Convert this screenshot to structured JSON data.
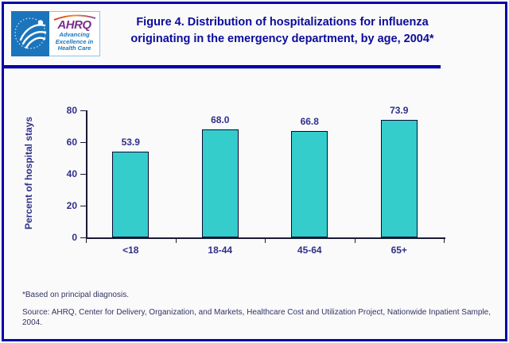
{
  "header": {
    "logo": {
      "acronym": "AHRQ",
      "tagline_lines": [
        "Advancing",
        "Excellence in",
        "Health Care"
      ]
    },
    "title_line1": "Figure 4. Distribution of hospitalizations for influenza",
    "title_line2": "originating in the emergency department, by age, 2004*"
  },
  "chart_data": {
    "type": "bar",
    "categories": [
      "<18",
      "18-44",
      "45-64",
      "65+"
    ],
    "values": [
      53.9,
      68.0,
      66.8,
      73.9
    ],
    "value_labels": [
      "53.9",
      "68.0",
      "66.8",
      "73.9"
    ],
    "title": "Figure 4. Distribution of hospitalizations for influenza originating in the emergency department, by age, 2004*",
    "xlabel": "",
    "ylabel": "Percent of hospital stays",
    "ylim": [
      0,
      80
    ],
    "yticks": [
      0,
      20,
      40,
      60,
      80
    ],
    "grid": false,
    "legend": false,
    "bar_color": "#35CCCC",
    "bar_border_color": "#0A0A33",
    "axis_color": "#1A1A33",
    "label_color": "#30308C"
  },
  "theme": {
    "page_border_color": "#0202A8",
    "title_text_color": "#0B0B9B",
    "footnote_text_color": "#333366",
    "hhs_logo_blue": "#1B75BC",
    "ahrq_purple": "#7A2E8E"
  },
  "footnotes": {
    "note": "*Based on principal diagnosis.",
    "source": "Source: AHRQ, Center for Delivery, Organization, and Markets, Healthcare Cost and Utilization Project, Nationwide Inpatient Sample, 2004."
  }
}
